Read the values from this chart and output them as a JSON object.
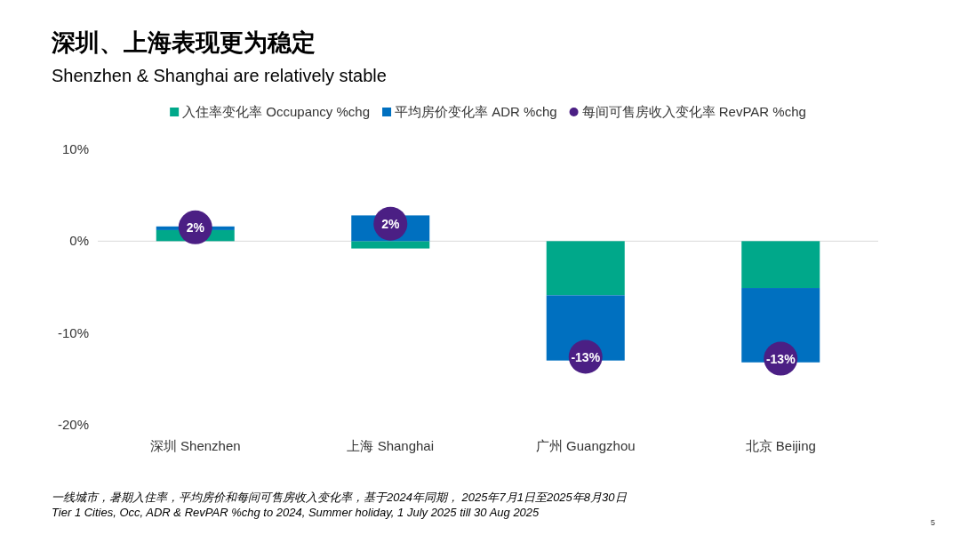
{
  "chart_data": {
    "type": "bar",
    "title": "深圳、上海表现更为稳定",
    "subtitle": "Shenzhen & Shanghai are relatively stable",
    "categories": [
      "深圳 Shenzhen",
      "上海 Shanghai",
      "广州 Guangzhou",
      "北京 Beijing"
    ],
    "stacked": true,
    "series": [
      {
        "name": "入住率变化率 Occupancy %chg",
        "color": "#00a88a",
        "values": [
          1.2,
          -0.8,
          -5.9,
          -5.1
        ]
      },
      {
        "name": "平均房价变化率 ADR %chg",
        "color": "#0070c0",
        "values": [
          0.4,
          2.8,
          -7.1,
          -8.1
        ]
      },
      {
        "name": "每间可售房收入变化率 RevPAR %chg",
        "type": "scatter",
        "marker": "circle",
        "color": "#4b1f84",
        "x": [
          "深圳 Shenzhen",
          "上海 Shanghai",
          "广州 Guangzhou",
          "北京 Beijing"
        ],
        "values": [
          1.5,
          1.9,
          -12.6,
          -12.8
        ],
        "value_labels": [
          "2%",
          "2%",
          "-13%",
          "-13%"
        ]
      }
    ],
    "ylim": [
      -20,
      10
    ],
    "yticks": [
      {
        "value": -20,
        "label": "-20%"
      },
      {
        "value": -10,
        "label": "-10%"
      },
      {
        "value": 0,
        "label": "0%"
      },
      {
        "value": 10,
        "label": "10%"
      }
    ],
    "legend": "top",
    "annotations": [
      "一线城市，暑期入住率，平均房价和每间可售房收入变化率，基于2024年同期， 2025年7月1日至2025年8月30日",
      "Tier 1 Cities, Occ, ADR & RevPAR %chg to 2024, Summer holiday, 1 July 2025 till 30 Aug 2025",
      "5"
    ]
  }
}
